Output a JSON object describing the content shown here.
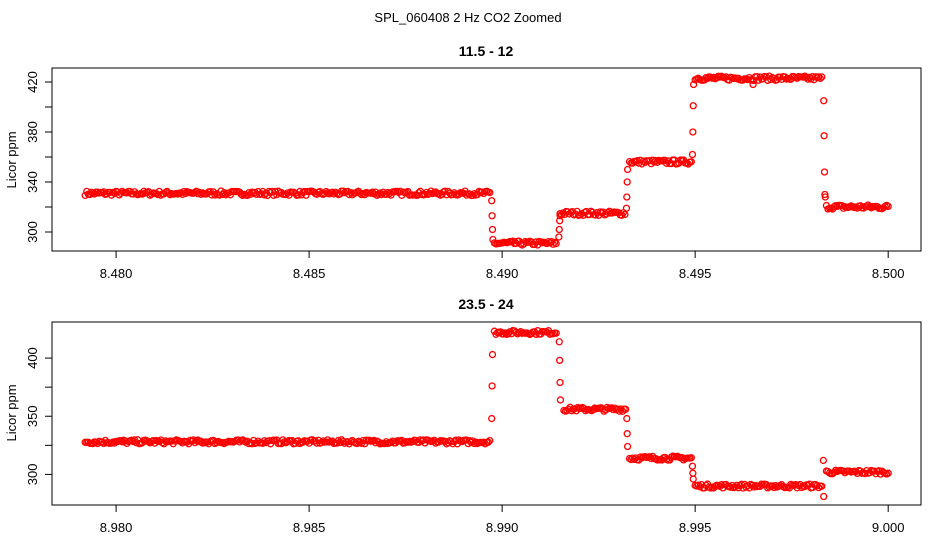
{
  "title": "SPL_060408  2 Hz CO2 Zoomed",
  "colors": {
    "points": "#ff0000",
    "axes": "#000000"
  },
  "chart_data": [
    {
      "type": "scatter",
      "title": "11.5 - 12",
      "xlabel": "",
      "ylabel": "Licor ppm",
      "xlim": [
        8.47834,
        8.50085
      ],
      "ylim": [
        284.8,
        431.2
      ],
      "xticks": [
        "8.480",
        "8.485",
        "8.490",
        "8.495",
        "8.500"
      ],
      "yticks": [
        "300",
        "340",
        "380",
        "420"
      ],
      "ytick_minor": [
        320,
        360,
        400
      ],
      "grid": false,
      "marker": "open-circle",
      "levels": [
        {
          "x": [
            8.4792,
            8.4897
          ],
          "y": 331
        },
        {
          "x": [
            8.4898,
            8.4914
          ],
          "y": 291
        },
        {
          "x": [
            8.4915,
            8.4932
          ],
          "y": 315
        },
        {
          "x": [
            8.4933,
            8.4949
          ],
          "y": 356
        },
        {
          "x": [
            8.495,
            8.4983
          ],
          "y": 423
        },
        {
          "x": [
            8.4984,
            8.5
          ],
          "y": 320
        }
      ],
      "transition_points": [
        [
          8.48973,
          325
        ],
        [
          8.48974,
          313
        ],
        [
          8.48975,
          302
        ],
        [
          8.48976,
          294
        ],
        [
          8.49147,
          296
        ],
        [
          8.49148,
          302
        ],
        [
          8.49149,
          309
        ],
        [
          8.4915,
          313
        ],
        [
          8.49322,
          319
        ],
        [
          8.49323,
          328
        ],
        [
          8.49324,
          340
        ],
        [
          8.49325,
          350
        ],
        [
          8.49493,
          362
        ],
        [
          8.49494,
          380
        ],
        [
          8.49495,
          401
        ],
        [
          8.49496,
          418
        ],
        [
          8.4965,
          418
        ],
        [
          8.49833,
          405
        ],
        [
          8.49834,
          377
        ],
        [
          8.49835,
          348
        ],
        [
          8.49836,
          330
        ],
        [
          8.49837,
          328
        ]
      ]
    },
    {
      "type": "scatter",
      "title": "23.5 - 24",
      "xlabel": "",
      "ylabel": "Licor ppm",
      "xlim": [
        8.97834,
        9.00085
      ],
      "ylim": [
        273.7,
        431.0
      ],
      "xticks": [
        "8.980",
        "8.985",
        "8.990",
        "8.995",
        "9.000"
      ],
      "yticks": [
        "300",
        "350",
        "400"
      ],
      "ytick_minor": [
        325,
        375
      ],
      "grid": false,
      "marker": "open-circle",
      "levels": [
        {
          "x": [
            8.9792,
            8.9897
          ],
          "y": 328
        },
        {
          "x": [
            8.9898,
            8.9914
          ],
          "y": 422
        },
        {
          "x": [
            8.9916,
            8.9932
          ],
          "y": 356
        },
        {
          "x": [
            8.9933,
            8.9949
          ],
          "y": 314
        },
        {
          "x": [
            8.995,
            8.9983
          ],
          "y": 290
        },
        {
          "x": [
            8.9984,
            9.0
          ],
          "y": 302
        }
      ],
      "transition_points": [
        [
          8.98973,
          348
        ],
        [
          8.98974,
          376
        ],
        [
          8.98975,
          403
        ],
        [
          8.99148,
          414
        ],
        [
          8.99149,
          398
        ],
        [
          8.9915,
          379
        ],
        [
          8.99151,
          364
        ],
        [
          8.99323,
          348
        ],
        [
          8.99324,
          335
        ],
        [
          8.99325,
          324
        ],
        [
          8.99493,
          307
        ],
        [
          8.99494,
          301
        ],
        [
          8.99495,
          296
        ],
        [
          8.99832,
          312
        ],
        [
          8.99833,
          281
        ]
      ]
    }
  ]
}
